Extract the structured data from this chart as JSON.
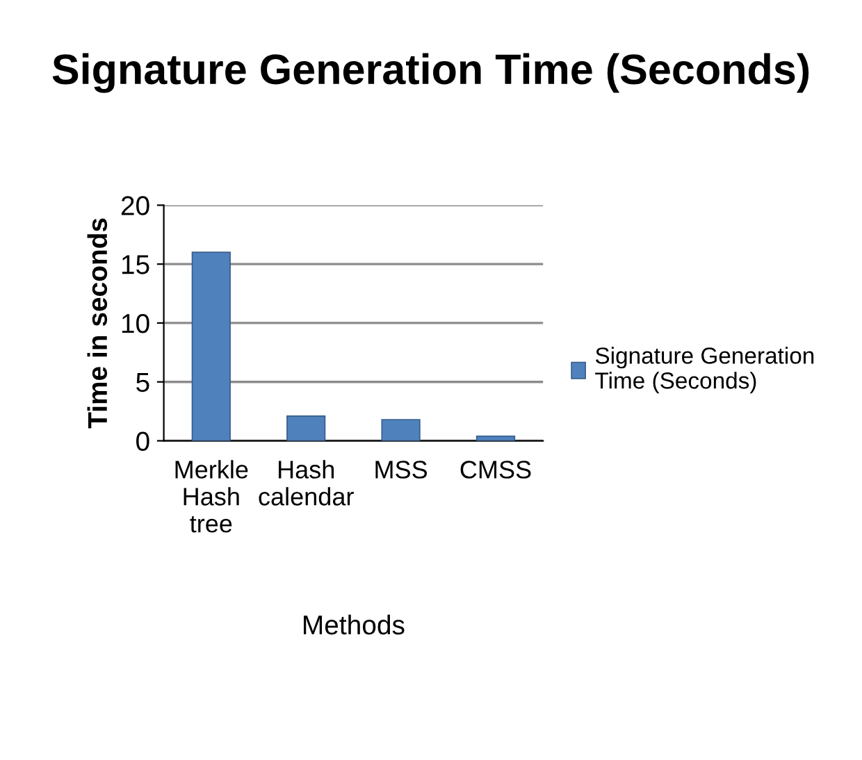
{
  "chart_data": {
    "type": "bar",
    "title": "Signature Generation Time (Seconds)",
    "xlabel": "Methods",
    "ylabel": "Time in seconds",
    "categories": [
      "Merkle\nHash\ntree",
      "Hash\ncalendar",
      "MSS",
      "CMSS"
    ],
    "series": [
      {
        "name": "Signature Generation\nTime (Seconds)",
        "color": "#4f81bd",
        "values": [
          16,
          2.1,
          1.8,
          0.4
        ]
      }
    ],
    "ylim": [
      0,
      20
    ],
    "yticks": [
      0,
      5,
      10,
      15,
      20
    ],
    "grid": "y",
    "legend": "right"
  }
}
